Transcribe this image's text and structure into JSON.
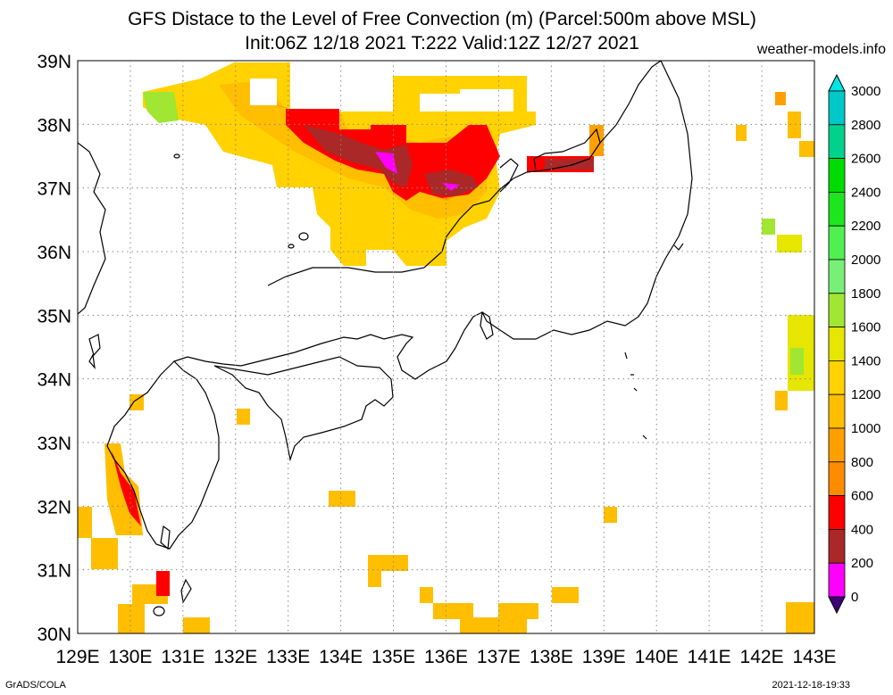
{
  "header": {
    "title_line1": "GFS Distace to the Level of Free Convection (m) (Parcel:500m above MSL)",
    "title_line2": "Init:06Z 12/18 2021 T:222 Valid:12Z 12/27 2021",
    "site": "weather-models.info"
  },
  "footer": {
    "left": "GrADS/COLA",
    "right": "2021-12-18-19:33"
  },
  "map": {
    "lon_labels": [
      "129E",
      "130E",
      "131E",
      "132E",
      "133E",
      "134E",
      "135E",
      "136E",
      "137E",
      "138E",
      "139E",
      "140E",
      "141E",
      "142E",
      "143E"
    ],
    "lat_labels": [
      "39N",
      "38N",
      "37N",
      "36N",
      "35N",
      "34N",
      "33N",
      "32N",
      "31N",
      "30N"
    ],
    "lon_range": [
      129,
      143
    ],
    "lat_range": [
      30,
      39
    ],
    "grid": "dotted"
  },
  "colorbar": {
    "labels": [
      "3000",
      "2800",
      "2600",
      "2400",
      "2200",
      "2000",
      "1800",
      "1600",
      "1400",
      "1200",
      "1000",
      "800",
      "600",
      "400",
      "200",
      "0"
    ],
    "colors": {
      "above_3000": "#00e6e6",
      "2800_3000": "#00c8c8",
      "2600_2800": "#00d28c",
      "2400_2600": "#00dc00",
      "2200_2400": "#1ee61e",
      "2000_2200": "#50f050",
      "1800_2000": "#78f078",
      "1600_1800": "#a0e632",
      "1400_1600": "#e6e600",
      "1200_1400": "#ffd200",
      "1000_1200": "#ffbe00",
      "800_1000": "#ffa000",
      "600_800": "#ff8c00",
      "400_600": "#ff0000",
      "200_400": "#aa2828",
      "0_200": "#ff00ff",
      "below_0": "#3c0078"
    }
  }
}
